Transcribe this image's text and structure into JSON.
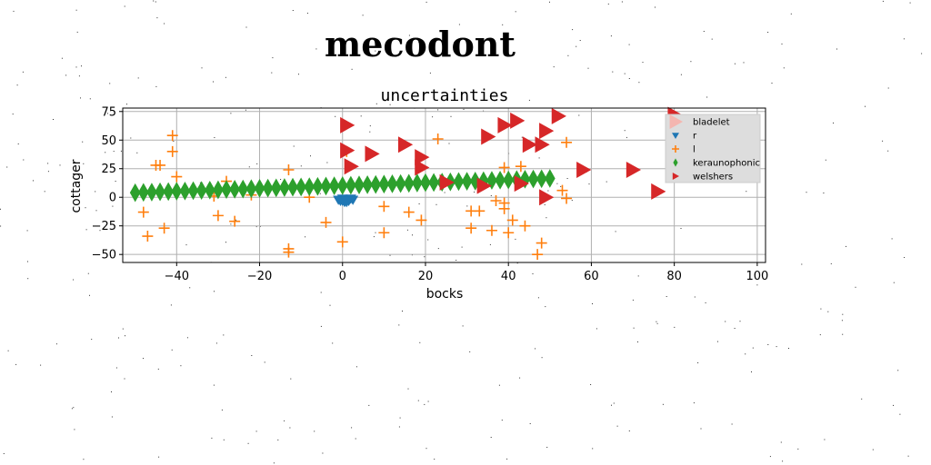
{
  "figure": {
    "suptitle": "mecodont"
  },
  "chart_data": {
    "type": "scatter",
    "title": "uncertainties",
    "xlabel": "bocks",
    "ylabel": "cottager",
    "xlim": [
      -53,
      102
    ],
    "ylim": [
      -57,
      78
    ],
    "xticks": [
      -40,
      -20,
      0,
      20,
      40,
      60,
      80,
      100
    ],
    "yticks": [
      -50,
      -25,
      0,
      25,
      50,
      75
    ],
    "xtick_labels": [
      "−40",
      "−20",
      "0",
      "20",
      "40",
      "60",
      "80",
      "100"
    ],
    "ytick_labels": [
      "−50",
      "−25",
      "0",
      "25",
      "50",
      "75"
    ],
    "grid": true,
    "legend_position": "top-right",
    "series": [
      {
        "name": "bladelet",
        "marker": "triangle-right",
        "color": "#f4b6b0",
        "points": []
      },
      {
        "name": "r",
        "marker": "triangle-down",
        "color": "#1f77b4",
        "points": [
          [
            -1,
            -2
          ],
          [
            -0.5,
            -3
          ],
          [
            0,
            -1
          ],
          [
            0.5,
            -4
          ],
          [
            1,
            -2
          ],
          [
            1.5,
            -3
          ],
          [
            2,
            -1
          ],
          [
            2.5,
            -2
          ],
          [
            0,
            -3
          ],
          [
            1,
            -4
          ]
        ]
      },
      {
        "name": "l",
        "marker": "plus",
        "color": "#ff7f0e",
        "points": [
          [
            -48,
            -13
          ],
          [
            -47,
            -34
          ],
          [
            -45,
            28
          ],
          [
            -44,
            28
          ],
          [
            -43,
            -27
          ],
          [
            -41,
            54
          ],
          [
            -41,
            40
          ],
          [
            -40,
            18
          ],
          [
            -31,
            1
          ],
          [
            -30,
            -16
          ],
          [
            -28,
            14
          ],
          [
            -26,
            -21
          ],
          [
            -22,
            2
          ],
          [
            -13,
            -48
          ],
          [
            -13,
            -45
          ],
          [
            -13,
            24
          ],
          [
            -8,
            0
          ],
          [
            -4,
            -22
          ],
          [
            0,
            -39
          ],
          [
            1,
            40
          ],
          [
            10,
            -31
          ],
          [
            10,
            -8
          ],
          [
            16,
            -13
          ],
          [
            19,
            -20
          ],
          [
            23,
            51
          ],
          [
            31,
            -12
          ],
          [
            31,
            -27
          ],
          [
            33,
            -12
          ],
          [
            36,
            -29
          ],
          [
            37,
            -3
          ],
          [
            39,
            -5
          ],
          [
            39,
            -10
          ],
          [
            39,
            26
          ],
          [
            40,
            -31
          ],
          [
            41,
            -20
          ],
          [
            43,
            27
          ],
          [
            44,
            -25
          ],
          [
            47,
            -50
          ],
          [
            48,
            -40
          ],
          [
            53,
            6
          ],
          [
            54,
            -1
          ],
          [
            54,
            48
          ]
        ]
      },
      {
        "name": "keraunophonic",
        "marker": "diamond",
        "color": "#2ca02c",
        "points": [
          [
            -50,
            4
          ],
          [
            -48,
            4.3
          ],
          [
            -46,
            4.5
          ],
          [
            -44,
            4.8
          ],
          [
            -42,
            5
          ],
          [
            -40,
            5.3
          ],
          [
            -38,
            5.5
          ],
          [
            -36,
            5.8
          ],
          [
            -34,
            6
          ],
          [
            -32,
            6.3
          ],
          [
            -30,
            6.5
          ],
          [
            -28,
            6.8
          ],
          [
            -26,
            7
          ],
          [
            -24,
            7.2
          ],
          [
            -22,
            7.5
          ],
          [
            -20,
            7.8
          ],
          [
            -18,
            8
          ],
          [
            -16,
            8.2
          ],
          [
            -14,
            8.5
          ],
          [
            -12,
            8.8
          ],
          [
            -10,
            9
          ],
          [
            -8,
            9.2
          ],
          [
            -6,
            9.5
          ],
          [
            -4,
            9.8
          ],
          [
            -2,
            10
          ],
          [
            0,
            10.2
          ],
          [
            2,
            10.5
          ],
          [
            4,
            10.8
          ],
          [
            6,
            11
          ],
          [
            8,
            11.2
          ],
          [
            10,
            11.5
          ],
          [
            12,
            11.8
          ],
          [
            14,
            12
          ],
          [
            16,
            12.2
          ],
          [
            18,
            12.5
          ],
          [
            20,
            12.8
          ],
          [
            22,
            13
          ],
          [
            24,
            13.2
          ],
          [
            26,
            13.5
          ],
          [
            28,
            13.8
          ],
          [
            30,
            14
          ],
          [
            32,
            14.2
          ],
          [
            34,
            14.5
          ],
          [
            36,
            14.8
          ],
          [
            38,
            15
          ],
          [
            40,
            15.2
          ],
          [
            42,
            15.5
          ],
          [
            44,
            15.8
          ],
          [
            46,
            16
          ],
          [
            48,
            16.2
          ],
          [
            50,
            16.5
          ]
        ]
      },
      {
        "name": "welshers",
        "marker": "triangle-right",
        "color": "#d62728",
        "points": [
          [
            1,
            63
          ],
          [
            1,
            41
          ],
          [
            2,
            27
          ],
          [
            7,
            38
          ],
          [
            15,
            46
          ],
          [
            19,
            35
          ],
          [
            19,
            26
          ],
          [
            25,
            13
          ],
          [
            34,
            10
          ],
          [
            35,
            53
          ],
          [
            39,
            63
          ],
          [
            42,
            67
          ],
          [
            43,
            12
          ],
          [
            45,
            46
          ],
          [
            48,
            46
          ],
          [
            49,
            58
          ],
          [
            49,
            0
          ],
          [
            52,
            71
          ],
          [
            58,
            24
          ],
          [
            70,
            24
          ],
          [
            76,
            5
          ],
          [
            80,
            72
          ],
          [
            88,
            38
          ],
          [
            95,
            38
          ]
        ]
      }
    ]
  },
  "colors": {
    "grid": "#b0b0b0",
    "legend_bg": "#dddddd",
    "background": "#ffffff"
  }
}
